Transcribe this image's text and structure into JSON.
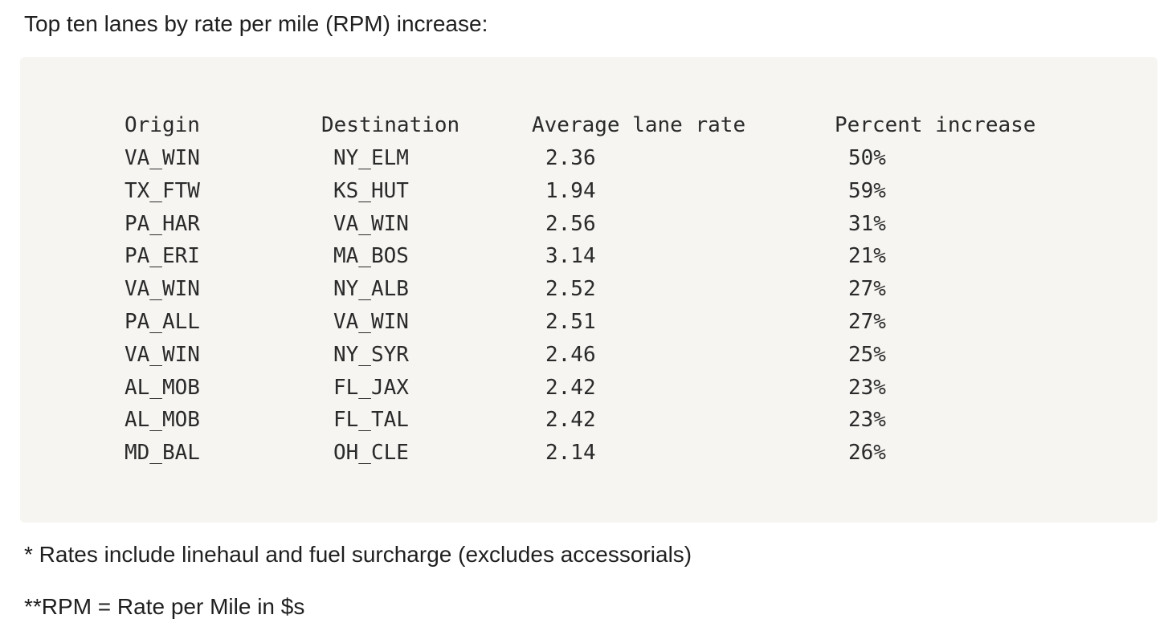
{
  "heading": "Top ten lanes by rate per mile (RPM) increase:",
  "table": {
    "headers": [
      "Origin",
      "Destination",
      "Average lane rate",
      "Percent increase"
    ],
    "rows": [
      [
        "VA_WIN",
        "NY_ELM",
        "2.36",
        "50%"
      ],
      [
        "TX_FTW",
        "KS_HUT",
        "1.94",
        "59%"
      ],
      [
        "PA_HAR",
        "VA_WIN",
        "2.56",
        "31%"
      ],
      [
        "PA_ERI",
        "MA_BOS",
        "3.14",
        "21%"
      ],
      [
        "VA_WIN",
        "NY_ALB",
        "2.52",
        "27%"
      ],
      [
        "PA_ALL",
        "VA_WIN",
        "2.51",
        "27%"
      ],
      [
        "VA_WIN",
        "NY_SYR",
        "2.46",
        "25%"
      ],
      [
        "AL_MOB",
        "FL_JAX",
        "2.42",
        "23%"
      ],
      [
        "AL_MOB",
        "FL_TAL",
        "2.42",
        "23%"
      ],
      [
        "MD_BAL",
        "OH_CLE",
        "2.14",
        "26%"
      ]
    ]
  },
  "notes": [
    "* Rates include linehaul and fuel surcharge (excludes accessorials)",
    "**RPM = Rate per Mile in $s"
  ]
}
